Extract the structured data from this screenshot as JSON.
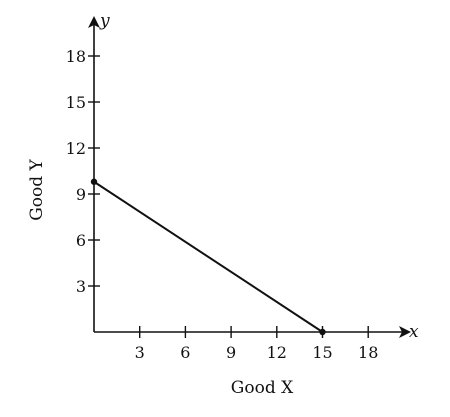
{
  "chart_data": {
    "type": "line",
    "xlabel": "Good X",
    "ylabel": "Good Y",
    "x_axis_var": "x",
    "y_axis_var": "y",
    "xlim": [
      0,
      20
    ],
    "ylim": [
      0,
      20
    ],
    "x_ticks": [
      3,
      6,
      9,
      12,
      15,
      18
    ],
    "y_ticks": [
      3,
      6,
      9,
      12,
      15,
      18
    ],
    "grid": false,
    "series": [
      {
        "points": [
          {
            "x": 0,
            "y": 9.8
          },
          {
            "x": 15,
            "y": 0
          }
        ],
        "color": "#111111",
        "endpoint_markers": true
      }
    ]
  }
}
